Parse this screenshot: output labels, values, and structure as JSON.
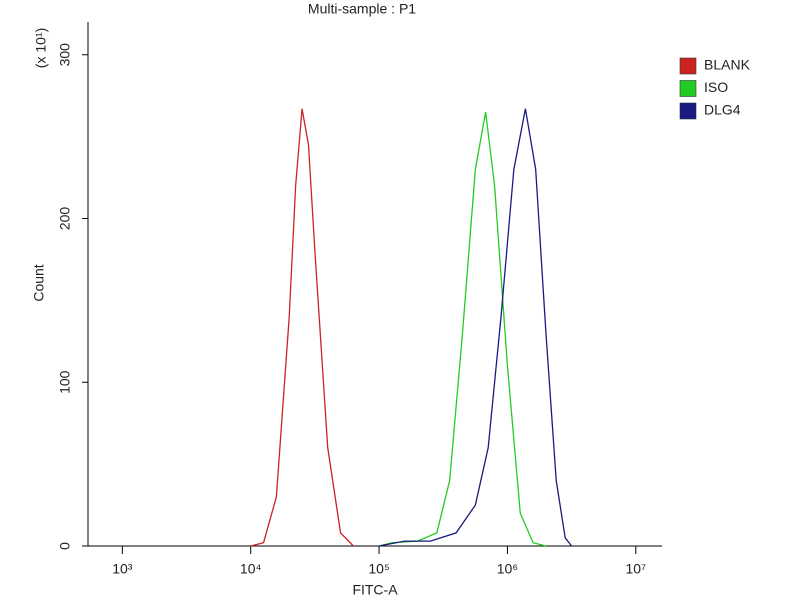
{
  "chart_data": {
    "type": "line",
    "title": "Multi-sample : P1",
    "x_label": "FITC-A",
    "y_label": "Count",
    "y_multiplier_label": "(x 10¹)",
    "x_log": true,
    "xlim": [
      540,
      16000000
    ],
    "xticks": [
      {
        "value": 1000,
        "label": "10³"
      },
      {
        "value": 10000,
        "label": "10⁴"
      },
      {
        "value": 100000,
        "label": "10⁵"
      },
      {
        "value": 1000000,
        "label": "10⁶"
      },
      {
        "value": 10000000,
        "label": "10⁷"
      }
    ],
    "ylim": [
      0,
      320
    ],
    "yticks": [
      0,
      100,
      200,
      300
    ],
    "legend": "right",
    "series": [
      {
        "name": "BLANK",
        "color": "#cc2222",
        "x": [
          10000,
          12589,
          15849,
          19953,
          22387,
          25119,
          28184,
          31623,
          39811,
          50119,
          63096
        ],
        "values": [
          0,
          2,
          30,
          140,
          220,
          267,
          245,
          180,
          60,
          8,
          0
        ]
      },
      {
        "name": "ISO",
        "color": "#22cc22",
        "x": [
          100000,
          125893,
          199526,
          281838,
          354813,
          446684,
          562341,
          676083,
          794328,
          1000000,
          1258925,
          1584893,
          1995262
        ],
        "values": [
          0,
          2,
          3,
          8,
          40,
          130,
          230,
          265,
          220,
          110,
          20,
          2,
          0
        ]
      },
      {
        "name": "DLG4",
        "color": "#1a1a80",
        "x": [
          100000,
          158489,
          251189,
          398107,
          562341,
          707946,
          891251,
          1122018,
          1380384,
          1659587,
          1995262,
          2398833,
          2818383,
          3162278
        ],
        "values": [
          0,
          3,
          3,
          8,
          25,
          60,
          140,
          230,
          267,
          230,
          130,
          40,
          5,
          0
        ]
      }
    ]
  }
}
